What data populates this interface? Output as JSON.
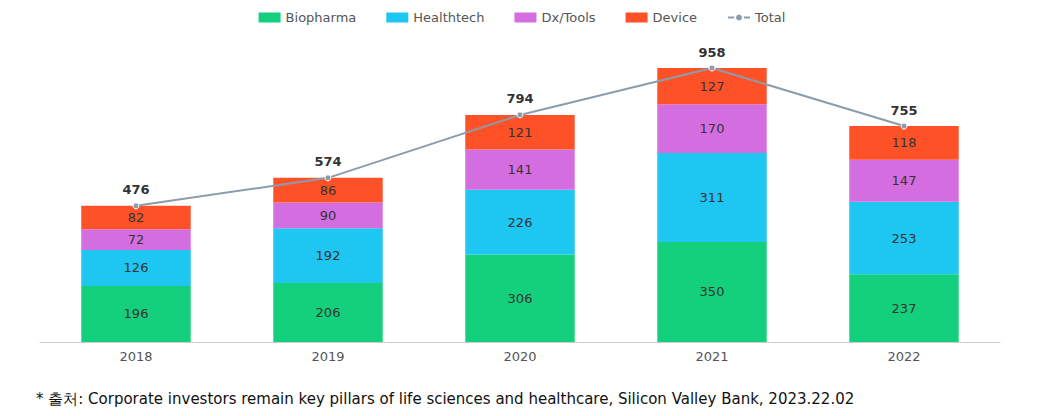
{
  "chart_data": {
    "type": "bar",
    "stacked": true,
    "data_labels": true,
    "tick_labels": "x",
    "grid": false,
    "legend": "top",
    "categories": [
      "2018",
      "2019",
      "2020",
      "2021",
      "2022"
    ],
    "ylim": [
      0,
      1000
    ],
    "series": [
      {
        "name": "Biopharma",
        "color": "#14cf7b",
        "values": [
          196,
          206,
          306,
          350,
          237
        ]
      },
      {
        "name": "Healthtech",
        "color": "#1ec6f2",
        "values": [
          126,
          192,
          226,
          311,
          253
        ]
      },
      {
        "name": "Dx/Tools",
        "color": "#d46ee0",
        "values": [
          72,
          90,
          141,
          170,
          147
        ]
      },
      {
        "name": "Device",
        "color": "#ff5128",
        "values": [
          82,
          86,
          121,
          127,
          118
        ]
      },
      {
        "name": "Total",
        "color": "#8c9cab",
        "type": "line",
        "marker": "circle",
        "values": [
          476,
          574,
          794,
          958,
          755
        ]
      }
    ],
    "annotations": [
      "* 출처: Corporate investors remain key pillars of life sciences and healthcare, Silicon Valley Bank, 2023.22.02"
    ]
  }
}
